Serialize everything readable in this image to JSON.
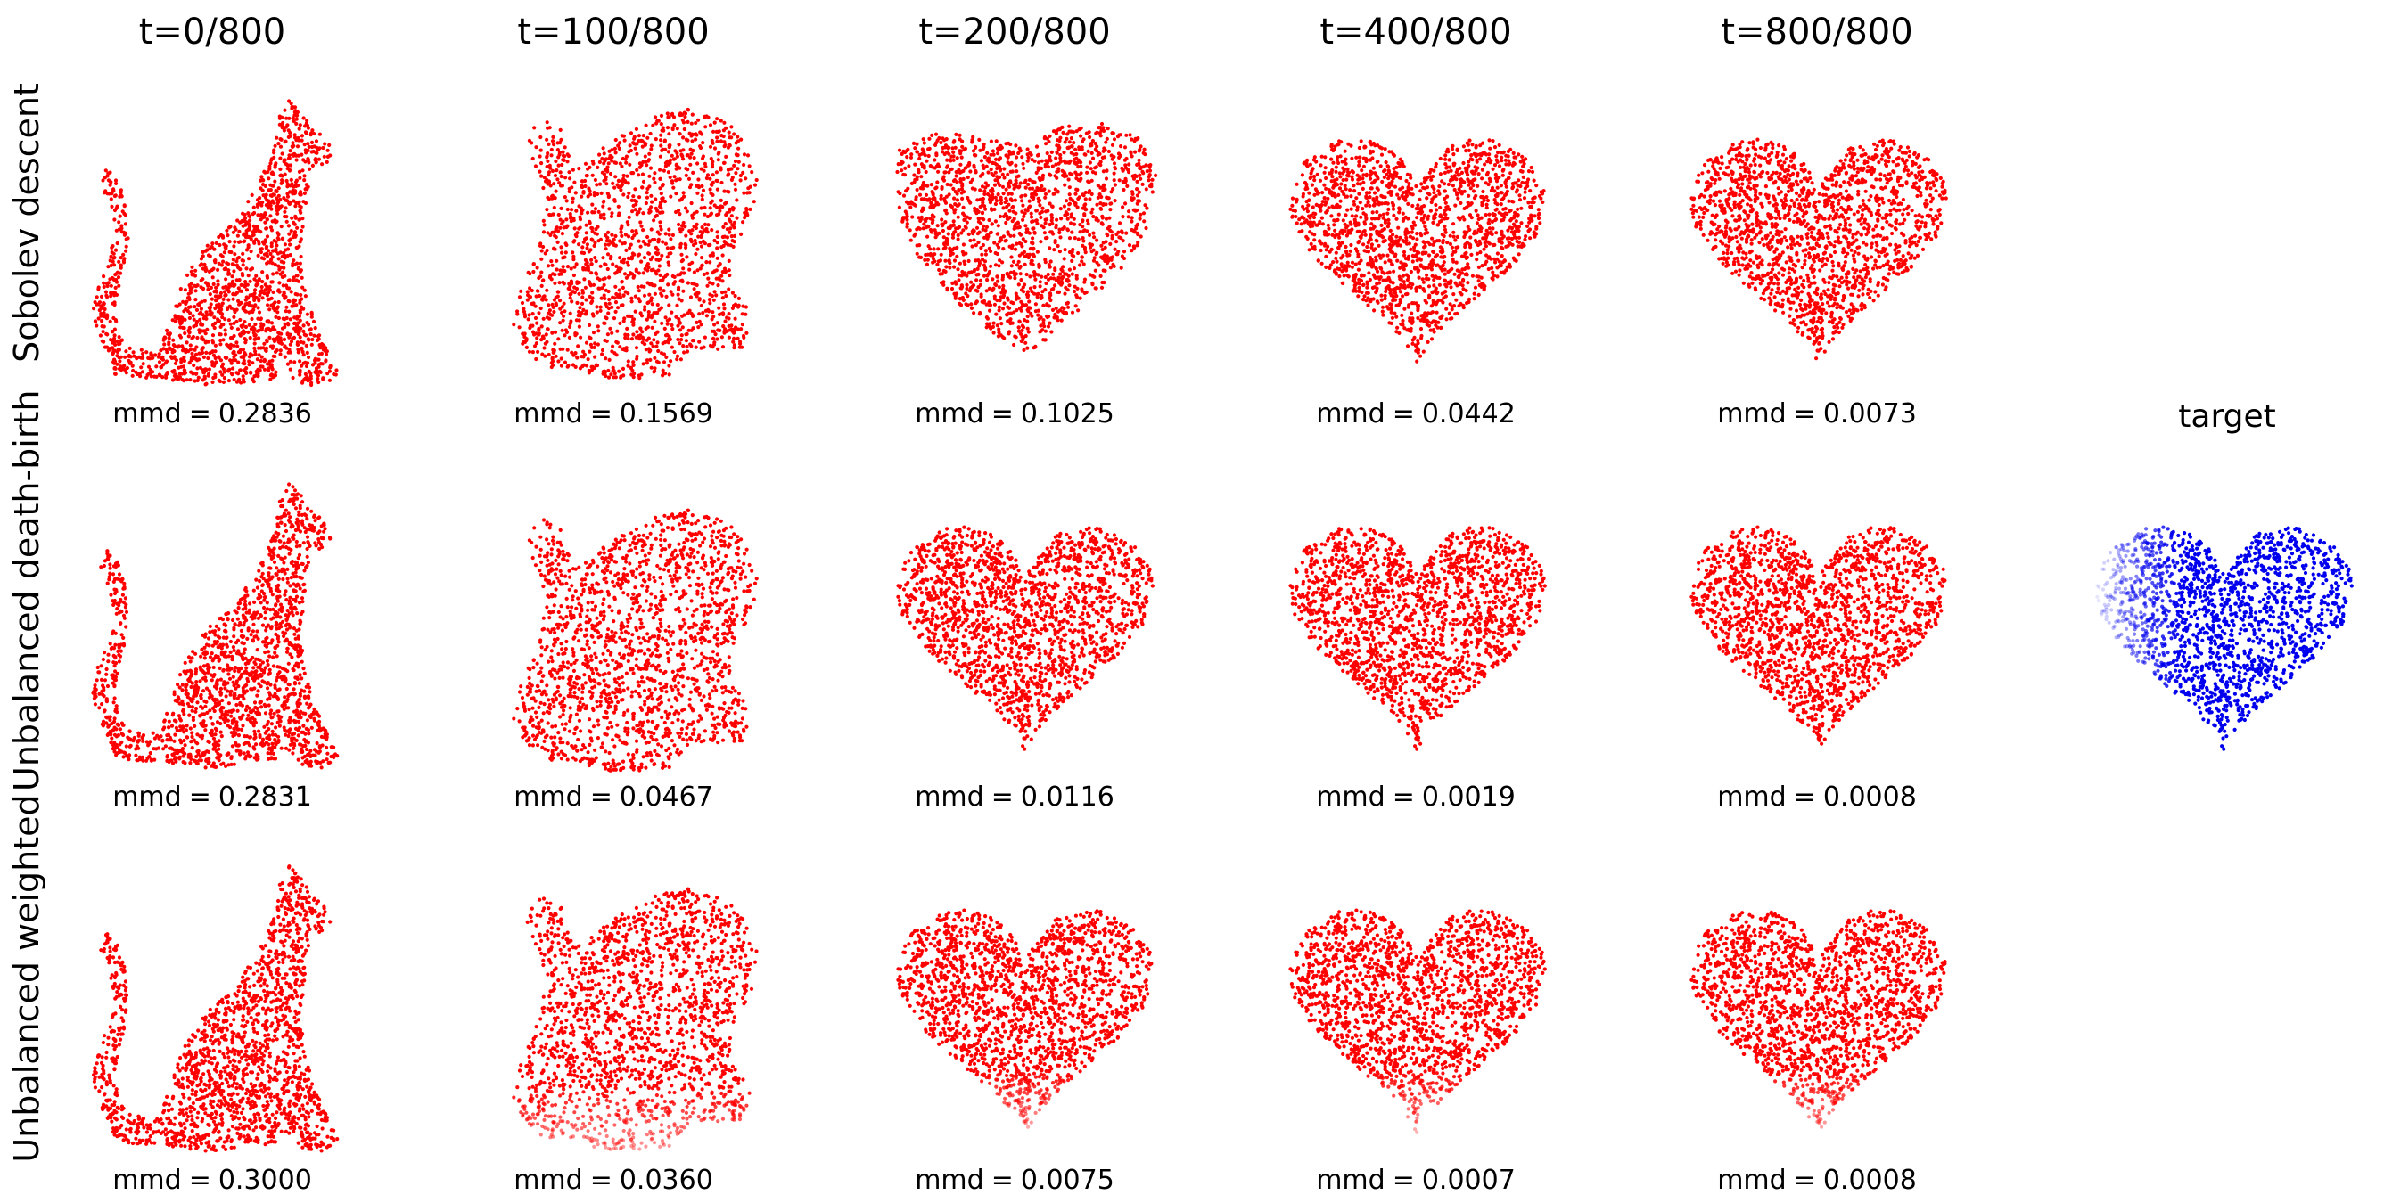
{
  "figure": {
    "columns": [
      "t=0/800",
      "t=100/800",
      "t=200/800",
      "t=400/800",
      "t=800/800"
    ],
    "rows": [
      {
        "label": "Sobolev descent",
        "mmd": [
          "0.2836",
          "0.1569",
          "0.1025",
          "0.0442",
          "0.0073"
        ]
      },
      {
        "label": "Unbalanced death-birth",
        "mmd": [
          "0.2831",
          "0.0467",
          "0.0116",
          "0.0019",
          "0.0008"
        ]
      },
      {
        "label": "Unbalanced weighted",
        "mmd": [
          "0.3000",
          "0.0360",
          "0.0075",
          "0.0007",
          "0.0008"
        ]
      }
    ],
    "mmd_prefix": "mmd",
    "mmd_eq": "=",
    "target_label": "target",
    "colors": {
      "particles": "#ff0000",
      "target": "#0000ee",
      "background": "#ffffff"
    }
  },
  "chart_data": {
    "type": "scatter",
    "title": "",
    "xlabel": "",
    "ylabel": "",
    "grid": false,
    "columns": [
      "t=0/800",
      "t=100/800",
      "t=200/800",
      "t=400/800",
      "t=800/800"
    ],
    "series": [
      {
        "name": "Sobolev descent",
        "shape_sequence": [
          "cat",
          "cat-to-heart",
          "mostly-heart",
          "heart",
          "heart"
        ],
        "mmd": [
          0.2836,
          0.1569,
          0.1025,
          0.0442,
          0.0073
        ]
      },
      {
        "name": "Unbalanced death-birth",
        "shape_sequence": [
          "cat",
          "cat-to-heart",
          "heart",
          "heart",
          "heart"
        ],
        "mmd": [
          0.2831,
          0.0467,
          0.0116,
          0.0019,
          0.0008
        ]
      },
      {
        "name": "Unbalanced weighted",
        "shape_sequence": [
          "cat",
          "cat-to-heart",
          "heart",
          "heart",
          "heart"
        ],
        "mmd": [
          0.3,
          0.036,
          0.0075,
          0.0007,
          0.0008
        ]
      },
      {
        "name": "target",
        "shape_sequence": [
          "heart"
        ]
      }
    ]
  }
}
